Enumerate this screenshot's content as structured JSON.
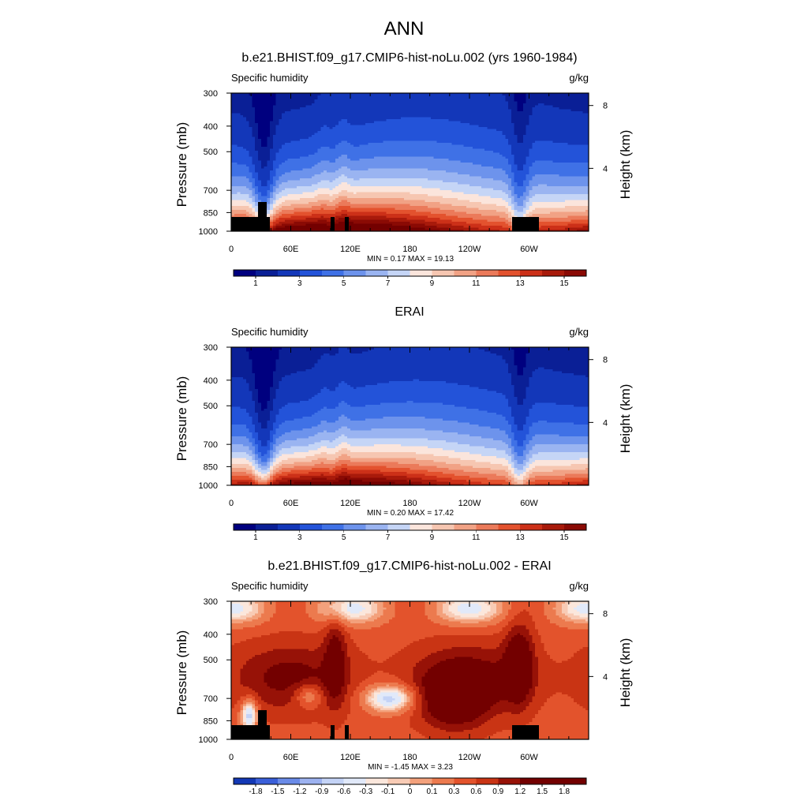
{
  "figure_title": "ANN",
  "colors": {
    "abs": [
      "#00007f",
      "#0a1f96",
      "#1337b9",
      "#2353d9",
      "#3f71e6",
      "#6d93ec",
      "#9ab4f1",
      "#c5d5f6",
      "#fbe5dc",
      "#f6c6b1",
      "#f1a285",
      "#eb7a5a",
      "#e3522e",
      "#cc3018",
      "#a81a0b",
      "#8a0a04",
      "#730000"
    ],
    "diff": [
      "#1338b5",
      "#3a5fd9",
      "#6a8be8",
      "#9db2f0",
      "#c4d3f6",
      "#e1e9f9",
      "#fbe7dc",
      "#f8cbb5",
      "#f3a17c",
      "#ec7a4e",
      "#e3532c",
      "#c93414",
      "#971207",
      "#730000"
    ],
    "mask": "#000000"
  },
  "chart_data": [
    {
      "type": "heatmap",
      "title": "b.e21.BHIST.f09_g17.CMIP6-hist-noLu.002 (yrs 1960-1984)",
      "variable_label": "Specific humidity",
      "units": "g/kg",
      "ylabel": "Pressure (mb)",
      "ylabel_right": "Height (km)",
      "yticks": [
        300,
        400,
        500,
        700,
        850,
        1000
      ],
      "yticks_right": [
        8,
        4
      ],
      "xticks": [
        "0",
        "60E",
        "120E",
        "180",
        "120W",
        "60W"
      ],
      "stats": "MIN =   0.17  MAX =  19.13",
      "colorbar_labels": [
        "1",
        "3",
        "5",
        "7",
        "9",
        "11",
        "13",
        "15"
      ],
      "min": 0.17,
      "max": 19.13
    },
    {
      "type": "heatmap",
      "title": "ERAI",
      "variable_label": "Specific humidity",
      "units": "g/kg",
      "ylabel": "Pressure (mb)",
      "ylabel_right": "Height (km)",
      "yticks": [
        300,
        400,
        500,
        700,
        850,
        1000
      ],
      "yticks_right": [
        8,
        4
      ],
      "xticks": [
        "0",
        "60E",
        "120E",
        "180",
        "120W",
        "60W"
      ],
      "stats": "MIN =   0.20  MAX =  17.42",
      "colorbar_labels": [
        "1",
        "3",
        "5",
        "7",
        "9",
        "11",
        "13",
        "15"
      ],
      "min": 0.2,
      "max": 17.42
    },
    {
      "type": "heatmap",
      "title": "b.e21.BHIST.f09_g17.CMIP6-hist-noLu.002 - ERAI",
      "variable_label": "Specific humidity",
      "units": "g/kg",
      "ylabel": "Pressure (mb)",
      "ylabel_right": "Height (km)",
      "yticks": [
        300,
        400,
        500,
        700,
        850,
        1000
      ],
      "yticks_right": [
        8,
        4
      ],
      "xticks": [
        "0",
        "60E",
        "120E",
        "180",
        "120W",
        "60W"
      ],
      "stats": "MIN =  -1.45  MAX =   3.23",
      "colorbar_labels": [
        "-1.8",
        "-1.5",
        "-1.2",
        "-0.9",
        "-0.6",
        "-0.3",
        "-0.1",
        "0",
        "0.1",
        "0.3",
        "0.6",
        "0.9",
        "1.2",
        "1.5",
        "1.8"
      ],
      "min": -1.45,
      "max": 3.23
    }
  ]
}
